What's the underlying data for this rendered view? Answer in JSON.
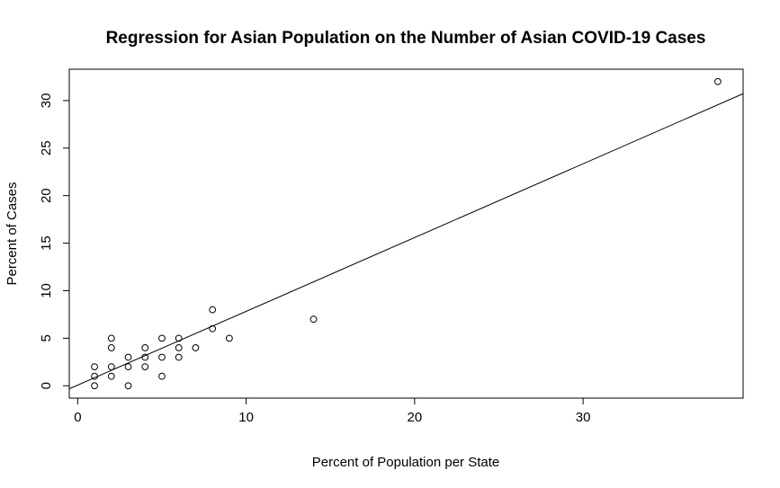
{
  "chart_data": {
    "type": "scatter",
    "title": "Regression for Asian Population on the Number of Asian COVID-19 Cases",
    "xlabel": "Percent of Population per State",
    "ylabel": "Percent of Cases",
    "xlim": [
      -0.5,
      39.5
    ],
    "ylim": [
      -1.3,
      33.3
    ],
    "xticks": [
      0,
      10,
      20,
      30
    ],
    "yticks": [
      0,
      5,
      10,
      15,
      20,
      25,
      30
    ],
    "grid": false,
    "legend": "none",
    "points": [
      {
        "x": 1,
        "y": 0
      },
      {
        "x": 1,
        "y": 1
      },
      {
        "x": 1,
        "y": 2
      },
      {
        "x": 2,
        "y": 1
      },
      {
        "x": 2,
        "y": 2
      },
      {
        "x": 2,
        "y": 4
      },
      {
        "x": 2,
        "y": 5
      },
      {
        "x": 3,
        "y": 0
      },
      {
        "x": 3,
        "y": 2
      },
      {
        "x": 3,
        "y": 3
      },
      {
        "x": 4,
        "y": 2
      },
      {
        "x": 4,
        "y": 3
      },
      {
        "x": 4,
        "y": 4
      },
      {
        "x": 5,
        "y": 1
      },
      {
        "x": 5,
        "y": 3
      },
      {
        "x": 5,
        "y": 5
      },
      {
        "x": 6,
        "y": 3
      },
      {
        "x": 6,
        "y": 4
      },
      {
        "x": 6,
        "y": 5
      },
      {
        "x": 7,
        "y": 4
      },
      {
        "x": 8,
        "y": 6
      },
      {
        "x": 8,
        "y": 8
      },
      {
        "x": 9,
        "y": 5
      },
      {
        "x": 14,
        "y": 7
      },
      {
        "x": 38,
        "y": 32
      }
    ],
    "regression_line": {
      "intercept": 0.07,
      "slope": 0.776
    },
    "colors": {
      "points": "#000000",
      "line": "#000000",
      "axes": "#000000"
    }
  }
}
